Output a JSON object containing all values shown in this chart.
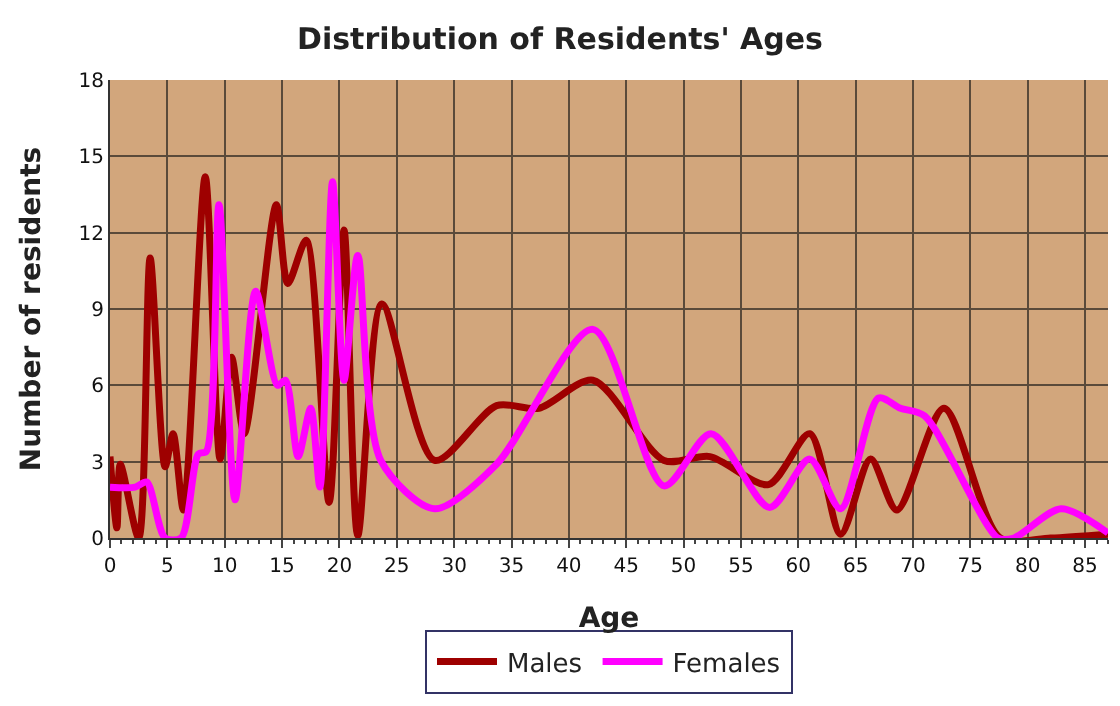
{
  "chart_data": {
    "type": "line",
    "title": "Distribution of Residents' Ages",
    "xlabel": "Age",
    "ylabel": "Number of residents",
    "xlim": [
      0,
      87
    ],
    "xticks": [
      0,
      5,
      10,
      15,
      20,
      25,
      30,
      35,
      40,
      45,
      50,
      55,
      60,
      65,
      70,
      75,
      80,
      85
    ],
    "ylim": [
      0,
      18
    ],
    "yticks": [
      0,
      3,
      6,
      9,
      12,
      15,
      18
    ],
    "grid": true,
    "legend": "bottom",
    "marker": "none",
    "line_style": "solid",
    "series": [
      {
        "name": "Males",
        "color": "#9e0000",
        "x": [
          0,
          0.6,
          0.9,
          2.5,
          3.5,
          4.8,
          5.5,
          6.4,
          8.3,
          9.6,
          10.6,
          11.7,
          14.5,
          15.5,
          17.1,
          19.1,
          20.4,
          21.6,
          23.7,
          28.3,
          33.7,
          37.4,
          42.1,
          48.3,
          52.3,
          57.4,
          61.0,
          63.7,
          66.3,
          68.6,
          72.7,
          77.6,
          82,
          87
        ],
        "values": [
          3.2,
          0.4,
          2.9,
          0,
          11,
          2.8,
          4.1,
          1.1,
          14.2,
          3.1,
          7.1,
          4.1,
          13.1,
          10,
          11.7,
          1.4,
          12.1,
          0.1,
          9.2,
          3.05,
          5.2,
          5.1,
          6.2,
          3.05,
          3.2,
          2.1,
          4.1,
          0.15,
          3.1,
          1.1,
          5.1,
          0,
          0,
          0.15
        ]
      },
      {
        "name": "Females",
        "color": "#ff00ff",
        "x": [
          0,
          2.2,
          3.2,
          4.8,
          6.2,
          7.7,
          8.4,
          9.5,
          10.9,
          12.7,
          14.6,
          15.3,
          16.4,
          17.5,
          18.3,
          19.4,
          20.4,
          21.6,
          23.6,
          28.3,
          33.7,
          42.1,
          48.3,
          52.4,
          57.5,
          61.0,
          63.7,
          67.0,
          68.9,
          71.0,
          77.4,
          78.8,
          82.9,
          87
        ],
        "values": [
          2,
          2,
          2.2,
          0,
          0,
          3.3,
          3.4,
          13.1,
          1.5,
          9.7,
          6,
          6.2,
          3.2,
          5.1,
          2,
          14,
          6.2,
          11.1,
          3.05,
          1.15,
          2.9,
          8.2,
          2.05,
          4.1,
          1.2,
          3.1,
          1.15,
          5.5,
          5.1,
          4.8,
          0,
          0,
          1.15,
          0.2
        ]
      }
    ]
  }
}
